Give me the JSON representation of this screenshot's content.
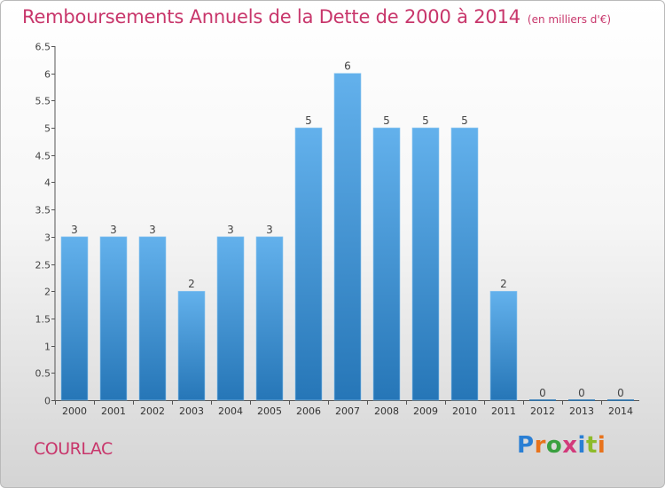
{
  "header": {
    "title": "Remboursements Annuels de la Dette de 2000 à 2014",
    "unit": "(en milliers d'€)"
  },
  "footer": {
    "place": "COURLAC",
    "logo_text": "Proxiti"
  },
  "colors": {
    "title": "#c8366b",
    "bar_top": "#63b1ec",
    "bar_bottom": "#2676b7"
  },
  "chart_data": {
    "type": "bar",
    "title": "Remboursements Annuels de la Dette de 2000 à 2014",
    "xlabel": "",
    "ylabel": "",
    "ylim": [
      0,
      6.5
    ],
    "yticks": [
      "0",
      "0.5",
      "1",
      "1.5",
      "2",
      "2.5",
      "3",
      "3.5",
      "4",
      "4.5",
      "5",
      "5.5",
      "6",
      "6.5"
    ],
    "grid": false,
    "categories": [
      "2000",
      "2001",
      "2002",
      "2003",
      "2004",
      "2005",
      "2006",
      "2007",
      "2008",
      "2009",
      "2010",
      "2011",
      "2012",
      "2013",
      "2014"
    ],
    "values": [
      3,
      3,
      3,
      2,
      3,
      3,
      5,
      6,
      5,
      5,
      5,
      2,
      0,
      0,
      0
    ],
    "data_labels": [
      "3",
      "3",
      "3",
      "2",
      "3",
      "3",
      "5",
      "6",
      "5",
      "5",
      "5",
      "2",
      "0",
      "0",
      "0"
    ]
  }
}
